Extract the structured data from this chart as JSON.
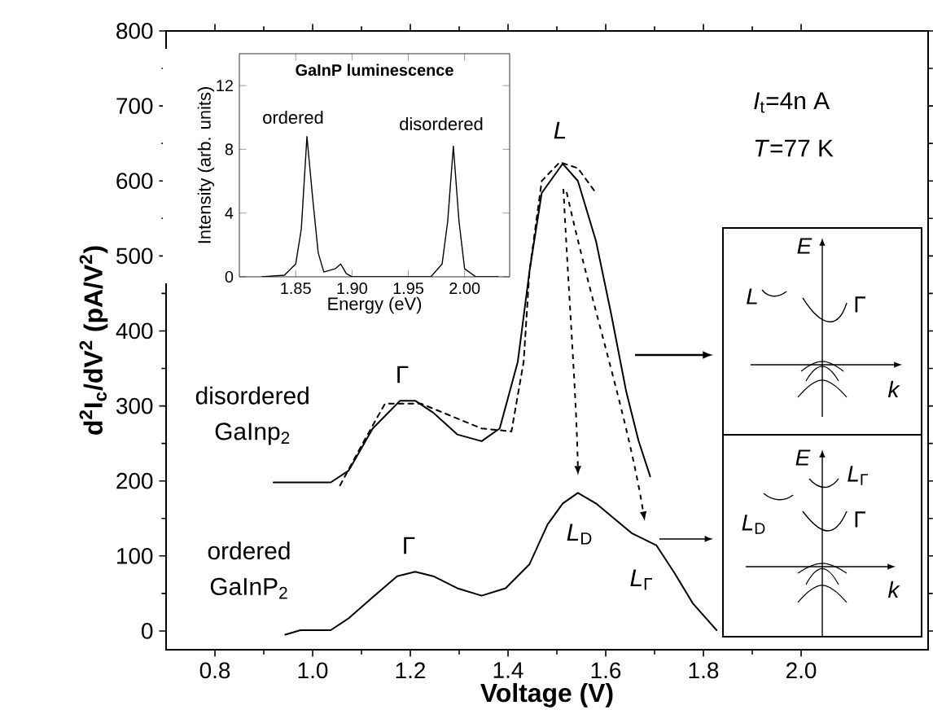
{
  "chart_data": [
    {
      "type": "line",
      "xlabel": "Voltage (V)",
      "ylabel": "d$^{2}$I$_{c}$/dV$^{2}$ (pA/V$^{2}$)",
      "legend": "left",
      "xlim": [
        0.7,
        2.26
      ],
      "ylim": [
        -25,
        800
      ],
      "xticks": [
        0.8,
        {
          "value": 1,
          "label": "1.0"
        },
        1.2,
        1.4,
        1.6,
        1.8,
        {
          "value": 2,
          "label": "2.0"
        }
      ],
      "yticks": [
        0,
        100,
        200,
        300,
        400,
        500,
        600,
        700,
        800
      ],
      "series": [
        {
          "name": "disordered GaInp$_{2}$",
          "color": "#000000",
          "line_style": "solid",
          "x": [
            0.92,
            1.037,
            1.074,
            1.123,
            1.179,
            1.21,
            1.247,
            1.296,
            1.346,
            1.383,
            1.42,
            1.444,
            1.469,
            1.512,
            1.543,
            1.58,
            1.611,
            1.642,
            1.667,
            1.691
          ],
          "values": [
            198,
            198,
            214,
            270,
            307,
            307,
            291,
            262,
            253,
            270,
            359,
            480,
            584,
            623,
            600,
            520,
            423,
            319,
            254,
            206
          ]
        },
        {
          "color": "#000000",
          "line_style": "dashed",
          "x": [
            1.056,
            1.099,
            1.148,
            1.222,
            1.346,
            1.407,
            1.432,
            1.444,
            1.469,
            1.506,
            1.543,
            1.58
          ],
          "values": [
            194,
            246,
            303,
            303,
            270,
            266,
            359,
            480,
            600,
            625,
            617,
            584
          ]
        },
        {
          "name": "ordered GaInP$_{2}$",
          "color": "#000000",
          "line_style": "solid",
          "x": [
            0.944,
            0.975,
            1.037,
            1.074,
            1.123,
            1.173,
            1.21,
            1.247,
            1.296,
            1.346,
            1.395,
            1.444,
            1.481,
            1.512,
            1.543,
            1.58,
            1.617,
            1.654,
            1.704,
            1.741,
            1.778,
            1.827
          ],
          "values": [
            -5,
            1,
            1,
            17,
            45,
            73,
            79,
            73,
            57,
            47,
            57,
            89,
            142,
            170,
            184,
            170,
            150,
            130,
            114,
            77,
            37,
            1
          ]
        }
      ],
      "annotations": [
        "Γ",
        "*L*",
        "Γ",
        "*L*$_{D}$",
        "*L*$_{Γ}$",
        "*I*$_{t}$=4n A",
        "*T*=77 K",
        "*E*",
        "*L*",
        "Γ",
        "*k*",
        "*E*",
        "*L*$_{Γ}$",
        "*L*$_{D}$",
        "Γ",
        "*k*"
      ]
    },
    {
      "type": "line",
      "title": "GaInP luminescence",
      "xlabel": "Energy (eV)",
      "ylabel": "Intensity (arb. units)",
      "xlim": [
        1.8,
        2.04
      ],
      "ylim": [
        0,
        14
      ],
      "xticks": [
        1.85,
        {
          "value": 1.9,
          "label": "1.90"
        },
        1.95,
        {
          "value": 2.0,
          "label": "2.00"
        }
      ],
      "yticks": [
        0,
        4,
        8,
        12
      ],
      "series": [
        {
          "color": "#000000",
          "x": [
            1.82,
            1.84,
            1.85,
            1.855,
            1.86,
            1.865,
            1.87,
            1.875,
            1.885,
            1.89,
            1.895,
            1.9,
            1.97,
            1.98,
            1.985,
            1.99,
            1.995,
            2.0,
            2.01,
            2.03
          ],
          "values": [
            0,
            0.1,
            0.8,
            3,
            8.8,
            5,
            1.5,
            0.3,
            0.5,
            0.8,
            0.2,
            0,
            0,
            0.8,
            3.5,
            8.2,
            3.5,
            0.5,
            0,
            0
          ]
        }
      ],
      "annotations": [
        "ordered",
        "disordered"
      ]
    }
  ]
}
